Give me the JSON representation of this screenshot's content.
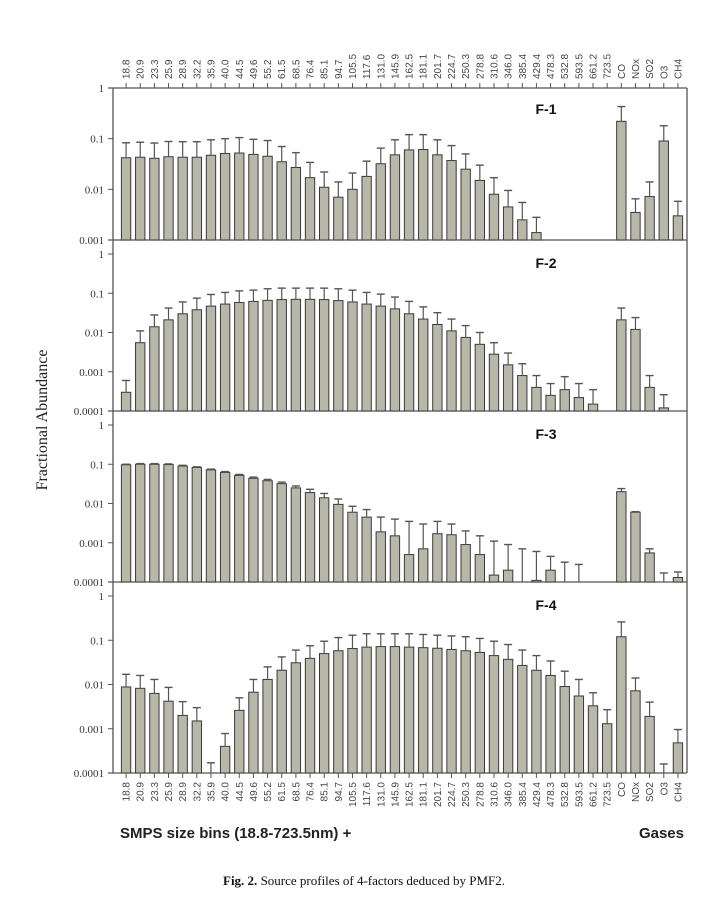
{
  "chart_data": {
    "type": "bar",
    "yscale": "log",
    "ylabel": "Fractional Abundance",
    "xlabel_left": "SMPS size bins (18.8-723.5nm) +",
    "xlabel_right": "Gases",
    "categories": [
      "18.8",
      "20.9",
      "23.3",
      "25.9",
      "28.9",
      "32.2",
      "35.9",
      "40.0",
      "44.5",
      "49.6",
      "55.2",
      "61.5",
      "68.5",
      "76.4",
      "85.1",
      "94.7",
      "105.5",
      "117.6",
      "131.0",
      "145.9",
      "162.5",
      "181.1",
      "201.7",
      "224.7",
      "250.3",
      "278.8",
      "310.6",
      "346.0",
      "385.4",
      "429.4",
      "478.3",
      "532.8",
      "593.5",
      "661.2",
      "723.5",
      "CO",
      "NOx",
      "SO2",
      "O3",
      "CH4"
    ],
    "yticks_labels_panel1": [
      "1",
      "0.1",
      "0.01",
      "0.001"
    ],
    "yticks_labels_panels234": [
      "1",
      "0.1",
      "0.01",
      "0.001",
      "0.0001"
    ],
    "panels": [
      {
        "name": "F-1",
        "ylim": [
          0.001,
          1
        ],
        "values": [
          0.042,
          0.043,
          0.041,
          0.044,
          0.043,
          0.043,
          0.047,
          0.051,
          0.052,
          0.049,
          0.045,
          0.035,
          0.027,
          0.017,
          0.011,
          0.007,
          0.01,
          0.018,
          0.032,
          0.048,
          0.06,
          0.061,
          0.048,
          0.037,
          0.025,
          0.015,
          0.008,
          0.0045,
          0.0025,
          0.0014,
          null,
          null,
          null,
          null,
          null,
          0.22,
          0.0035,
          0.0072,
          0.09,
          0.003
        ],
        "errors_upper": [
          0.083,
          0.085,
          0.082,
          0.088,
          0.087,
          0.087,
          0.095,
          0.1,
          0.105,
          0.097,
          0.092,
          0.07,
          0.053,
          0.034,
          0.022,
          0.014,
          0.021,
          0.036,
          0.065,
          0.095,
          0.12,
          0.12,
          0.095,
          0.073,
          0.05,
          0.03,
          0.017,
          0.0095,
          0.0055,
          0.0028,
          null,
          null,
          null,
          null,
          null,
          0.43,
          0.0065,
          0.014,
          0.18,
          0.0058
        ]
      },
      {
        "name": "F-2",
        "ylim": [
          0.0001,
          1
        ],
        "values": [
          0.0003,
          0.0055,
          0.014,
          0.021,
          0.03,
          0.038,
          0.047,
          0.053,
          0.058,
          0.062,
          0.066,
          0.069,
          0.07,
          0.07,
          0.069,
          0.065,
          0.06,
          0.053,
          0.047,
          0.04,
          0.03,
          0.022,
          0.016,
          0.011,
          0.0075,
          0.005,
          0.0028,
          0.0015,
          0.0008,
          0.0004,
          0.00025,
          0.00035,
          0.00022,
          0.00015,
          null,
          0.021,
          0.012,
          0.0004,
          0.00012,
          null
        ],
        "errors_upper": [
          0.0006,
          0.011,
          0.028,
          0.042,
          0.06,
          0.075,
          0.093,
          0.105,
          0.115,
          0.12,
          0.13,
          0.135,
          0.135,
          0.135,
          0.135,
          0.13,
          0.12,
          0.105,
          0.095,
          0.08,
          0.062,
          0.045,
          0.032,
          0.022,
          0.015,
          0.01,
          0.0055,
          0.003,
          0.0016,
          0.0008,
          0.0005,
          0.00075,
          0.0005,
          0.00035,
          null,
          0.042,
          0.024,
          0.0008,
          0.00026,
          null
        ]
      },
      {
        "name": "F-3",
        "ylim": [
          0.0001,
          1
        ],
        "values": [
          0.097,
          0.1,
          0.1,
          0.098,
          0.09,
          0.083,
          0.072,
          0.062,
          0.052,
          0.044,
          0.038,
          0.032,
          0.025,
          0.019,
          0.014,
          0.0095,
          0.006,
          0.0045,
          0.0019,
          0.0015,
          0.0005,
          0.0007,
          0.0017,
          0.0016,
          0.0009,
          0.0005,
          0.00015,
          0.0002,
          0.0001,
          0.00011,
          0.0002,
          null,
          null,
          null,
          null,
          0.02,
          0.006,
          0.00055,
          null,
          0.00013
        ],
        "errors_upper": [
          0.1,
          0.104,
          0.104,
          0.102,
          0.094,
          0.086,
          0.075,
          0.065,
          0.055,
          0.047,
          0.041,
          0.035,
          0.028,
          0.023,
          0.018,
          0.013,
          0.0085,
          0.007,
          0.0045,
          0.004,
          0.0035,
          0.003,
          0.0035,
          0.003,
          0.002,
          0.0015,
          0.0011,
          0.0009,
          0.0007,
          0.0006,
          0.00045,
          0.00032,
          0.00028,
          null,
          null,
          0.024,
          0.0062,
          0.0007,
          0.00017,
          0.00018
        ]
      },
      {
        "name": "F-4",
        "ylim": [
          0.0001,
          1
        ],
        "values": [
          0.0088,
          0.0082,
          0.0063,
          0.0042,
          0.002,
          0.0015,
          null,
          0.0004,
          0.0026,
          0.0067,
          0.013,
          0.021,
          0.031,
          0.039,
          0.05,
          0.058,
          0.065,
          0.07,
          0.072,
          0.072,
          0.07,
          0.068,
          0.066,
          0.062,
          0.058,
          0.053,
          0.045,
          0.037,
          0.027,
          0.021,
          0.016,
          0.009,
          0.0055,
          0.0033,
          0.0013,
          0.12,
          0.0072,
          0.0019,
          null,
          0.00048
        ],
        "errors_upper": [
          0.017,
          0.016,
          0.013,
          0.0086,
          0.0041,
          0.003,
          0.00017,
          0.00078,
          0.005,
          0.013,
          0.025,
          0.042,
          0.06,
          0.075,
          0.095,
          0.115,
          0.13,
          0.14,
          0.14,
          0.14,
          0.14,
          0.135,
          0.13,
          0.125,
          0.12,
          0.11,
          0.095,
          0.08,
          0.06,
          0.045,
          0.034,
          0.02,
          0.013,
          0.0065,
          0.0027,
          0.26,
          0.014,
          0.004,
          0.00016,
          0.00096
        ]
      }
    ]
  },
  "caption": {
    "prefix": "Fig. 2.",
    "text": " Source profiles of 4-factors deduced by PMF2."
  },
  "colors": {
    "bar_fill": "#b8b8aa",
    "bar_stroke": "#3a3a3a",
    "axis": "#555555",
    "error_bar": "#555555"
  }
}
